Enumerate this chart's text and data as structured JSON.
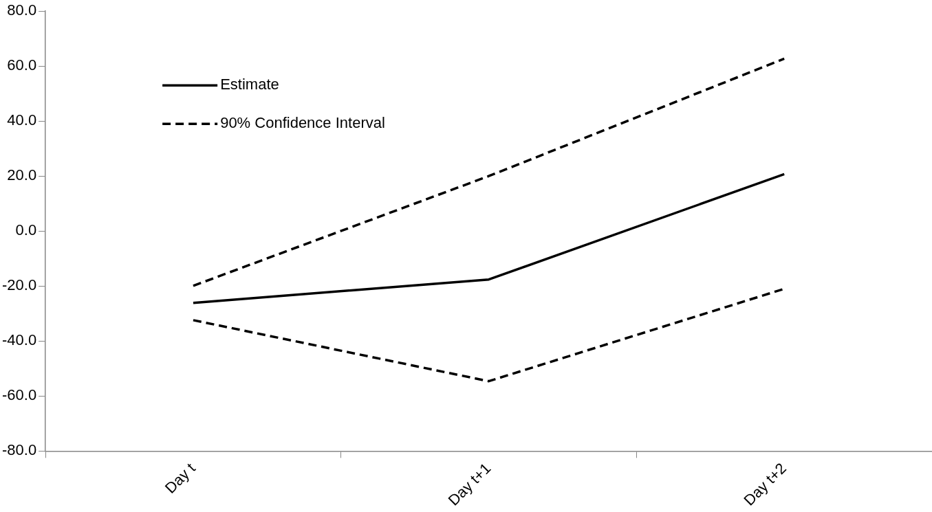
{
  "chart_data": {
    "type": "line",
    "categories": [
      "Day t",
      "Day t+1",
      "Day t+2"
    ],
    "series": [
      {
        "name": "Estimate",
        "color": "#000000",
        "line_style": "solid",
        "values": [
          -26.1,
          -17.6,
          20.7
        ]
      },
      {
        "name": "90% Confidence Interval",
        "color": "#000000",
        "line_style": "dashed",
        "values": [
          -19.9,
          20.0,
          62.7
        ]
      },
      {
        "color": "#000000",
        "line_style": "dashed",
        "values": [
          -32.4,
          -54.6,
          -21.0
        ]
      }
    ],
    "ylim": [
      -80,
      80
    ],
    "yticks": [
      {
        "value": -80,
        "label": "-80.0"
      },
      {
        "value": -60,
        "label": "-60.0"
      },
      {
        "value": -40,
        "label": "-40.0"
      },
      {
        "value": -20,
        "label": "-20.0"
      },
      {
        "value": 0,
        "label": "0.0"
      },
      {
        "value": 20,
        "label": "20.0"
      },
      {
        "value": 40,
        "label": "40.0"
      },
      {
        "value": 60,
        "label": "60.0"
      },
      {
        "value": 80,
        "label": "80.0"
      }
    ],
    "grid": false,
    "legend": "top left",
    "marker": "none"
  }
}
